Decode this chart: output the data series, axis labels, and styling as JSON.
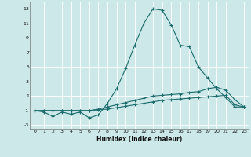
{
  "bg_color": "#cce8e8",
  "line_color": "#1a6b6b",
  "grid_color": "#ffffff",
  "xlabel": "Humidex (Indice chaleur)",
  "xlim": [
    -0.5,
    23.5
  ],
  "ylim": [
    -3.5,
    14.0
  ],
  "xticks": [
    0,
    1,
    2,
    3,
    4,
    5,
    6,
    7,
    8,
    9,
    10,
    11,
    12,
    13,
    14,
    15,
    16,
    17,
    18,
    19,
    20,
    21,
    22,
    23
  ],
  "yticks": [
    -3,
    -1,
    1,
    3,
    5,
    7,
    9,
    11,
    13
  ],
  "series1_x": [
    0,
    1,
    2,
    3,
    4,
    5,
    6,
    7,
    8,
    9,
    10,
    11,
    12,
    13,
    14,
    15,
    16,
    17,
    18,
    19,
    20,
    21,
    22,
    23
  ],
  "series1_y": [
    -1,
    -1.2,
    -1.8,
    -1.2,
    -1.5,
    -1.2,
    -2.0,
    -1.6,
    0.0,
    2.0,
    4.8,
    8.0,
    11.0,
    13.0,
    12.8,
    10.8,
    8.0,
    7.8,
    5.0,
    3.5,
    2.0,
    0.8,
    -0.5,
    -0.5
  ],
  "series2_x": [
    0,
    1,
    2,
    3,
    4,
    5,
    6,
    7,
    8,
    9,
    10,
    11,
    12,
    13,
    14,
    15,
    16,
    17,
    18,
    19,
    20,
    21,
    22,
    23
  ],
  "series2_y": [
    -1,
    -1,
    -1,
    -1,
    -1,
    -1,
    -1,
    -0.8,
    -0.5,
    -0.2,
    0.1,
    0.4,
    0.7,
    1.0,
    1.1,
    1.2,
    1.3,
    1.5,
    1.6,
    2.0,
    2.2,
    1.8,
    0.5,
    -0.5
  ],
  "series3_x": [
    0,
    1,
    2,
    3,
    4,
    5,
    6,
    7,
    8,
    9,
    10,
    11,
    12,
    13,
    14,
    15,
    16,
    17,
    18,
    19,
    20,
    21,
    22,
    23
  ],
  "series3_y": [
    -1,
    -1,
    -1,
    -1,
    -1,
    -1,
    -1,
    -0.9,
    -0.8,
    -0.6,
    -0.4,
    -0.2,
    0.0,
    0.2,
    0.4,
    0.5,
    0.6,
    0.7,
    0.8,
    0.9,
    1.0,
    1.1,
    -0.2,
    -0.5
  ]
}
